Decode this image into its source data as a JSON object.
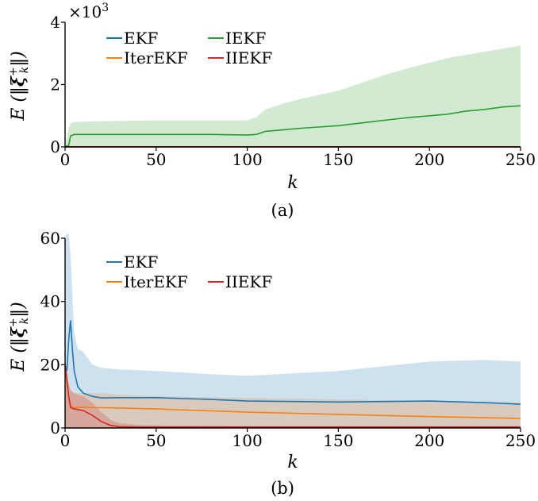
{
  "chart_data": [
    {
      "type": "line",
      "panel": "(a)",
      "caption": "(a)",
      "xlabel": "k",
      "ylabel": "E (‖ξ_k^+‖)",
      "y_multiplier": "×10^3",
      "xlim": [
        0,
        250
      ],
      "ylim": [
        0,
        4
      ],
      "xticks": [
        "0",
        "50",
        "100",
        "150",
        "200",
        "250"
      ],
      "yticks": [
        "0",
        "2",
        "4"
      ],
      "grid": false,
      "legend_placement": "top-left",
      "legend": [
        "EKF",
        "IterEKF",
        "IEKF",
        "IIEKF"
      ],
      "series": [
        {
          "name": "EKF",
          "color": "#1f77b4",
          "x": [
            0,
            250
          ],
          "y": [
            0.0,
            0.0
          ]
        },
        {
          "name": "IterEKF",
          "color": "#ff7f0e",
          "x": [
            0,
            250
          ],
          "y": [
            0.0,
            0.0
          ]
        },
        {
          "name": "IEKF",
          "color": "#2ca02c",
          "x": [
            0,
            2,
            3,
            5,
            20,
            50,
            80,
            100,
            105,
            110,
            120,
            130,
            150,
            160,
            175,
            190,
            200,
            210,
            220,
            230,
            240,
            250
          ],
          "y": [
            0.0,
            0.05,
            0.35,
            0.4,
            0.4,
            0.4,
            0.4,
            0.38,
            0.4,
            0.5,
            0.55,
            0.6,
            0.68,
            0.75,
            0.85,
            0.95,
            1.0,
            1.05,
            1.15,
            1.2,
            1.28,
            1.32
          ],
          "band_upper": [
            0.0,
            0.6,
            0.75,
            0.8,
            0.82,
            0.85,
            0.85,
            0.85,
            0.95,
            1.2,
            1.4,
            1.55,
            1.8,
            2.0,
            2.3,
            2.55,
            2.7,
            2.85,
            2.95,
            3.05,
            3.15,
            3.25
          ],
          "band_lower": [
            0,
            0,
            0,
            0,
            0,
            0,
            0,
            0,
            0,
            0,
            0,
            0,
            0,
            0,
            0,
            0,
            0,
            0,
            0,
            0,
            0,
            0
          ]
        },
        {
          "name": "IIEKF",
          "color": "#d62728",
          "x": [
            0,
            250
          ],
          "y": [
            0.0,
            0.0
          ]
        }
      ]
    },
    {
      "type": "line",
      "panel": "(b)",
      "caption": "(b)",
      "xlabel": "k",
      "ylabel": "E (‖ξ_k^+‖)",
      "xlim": [
        0,
        250
      ],
      "ylim": [
        0,
        60
      ],
      "xticks": [
        "0",
        "50",
        "100",
        "150",
        "200",
        "250"
      ],
      "yticks": [
        "0",
        "20",
        "40",
        "60"
      ],
      "grid": false,
      "legend_placement": "top-left",
      "legend": [
        "EKF",
        "IterEKF",
        "IIEKF"
      ],
      "series": [
        {
          "name": "EKF",
          "color": "#1f77b4",
          "x": [
            0,
            1,
            2,
            3,
            4,
            5,
            7,
            10,
            15,
            20,
            30,
            50,
            80,
            100,
            150,
            200,
            230,
            250
          ],
          "y": [
            20,
            18,
            28,
            34,
            25,
            18,
            13,
            11,
            10,
            9.5,
            9.6,
            9.6,
            9.0,
            8.5,
            8.2,
            8.5,
            8.0,
            7.5
          ],
          "band_upper": [
            60,
            64,
            62,
            55,
            42,
            30,
            25,
            24,
            20,
            19,
            18.5,
            18,
            17,
            16.5,
            18,
            21,
            21.5,
            21
          ],
          "band_lower": [
            0,
            0,
            0,
            0,
            0,
            0,
            0,
            0,
            0,
            0,
            0,
            0,
            0,
            0,
            0,
            0,
            0,
            0
          ]
        },
        {
          "name": "IterEKF",
          "color": "#ff7f0e",
          "x": [
            0,
            1,
            2,
            3,
            4,
            5,
            10,
            20,
            30,
            50,
            100,
            150,
            200,
            250
          ],
          "y": [
            20,
            15,
            10,
            7,
            6.5,
            6.5,
            6.5,
            6.4,
            6.3,
            6.0,
            5.0,
            4.3,
            3.6,
            3.0
          ],
          "band_upper": [
            22,
            18,
            14,
            12,
            11.5,
            11,
            11,
            11,
            10.5,
            10,
            9.5,
            9,
            8.5,
            8
          ],
          "band_lower": [
            0,
            0,
            0,
            0,
            0,
            0,
            0,
            0,
            0,
            0,
            0,
            0,
            0,
            0
          ]
        },
        {
          "name": "IIEKF",
          "color": "#d62728",
          "x": [
            0,
            1,
            2,
            3,
            5,
            10,
            15,
            20,
            25,
            30,
            40,
            50,
            100,
            150,
            200,
            250
          ],
          "y": [
            20,
            15,
            10,
            6.5,
            6.0,
            5.5,
            4.0,
            2.0,
            0.8,
            0.4,
            0.3,
            0.3,
            0.3,
            0.3,
            0.3,
            0.3
          ],
          "band_upper": [
            22,
            18,
            14,
            12,
            11,
            10,
            8,
            5,
            2.5,
            1.5,
            1,
            0.8,
            0.6,
            0.6,
            0.6,
            0.6
          ],
          "band_lower": [
            0,
            0,
            0,
            0,
            0,
            0,
            0,
            0,
            0,
            0,
            0,
            0,
            0,
            0,
            0,
            0
          ]
        }
      ]
    }
  ]
}
